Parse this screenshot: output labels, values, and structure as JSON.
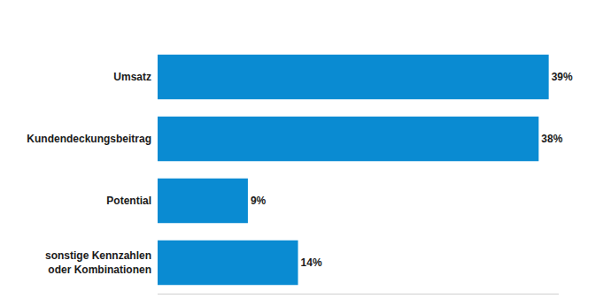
{
  "chart_data": {
    "type": "bar",
    "orientation": "horizontal",
    "categories": [
      "Umsatz",
      "Kundendeckungsbeitrag",
      "Potential",
      "sonstige Kennzahlen oder Kombinationen"
    ],
    "values": [
      39,
      38,
      9,
      14
    ],
    "value_labels": [
      "39%",
      "38%",
      "9%",
      "14%"
    ],
    "data_labels": true,
    "color": "#0a8bd2",
    "xlim": [
      0,
      40
    ],
    "grid": false,
    "tick_labels": "y"
  }
}
